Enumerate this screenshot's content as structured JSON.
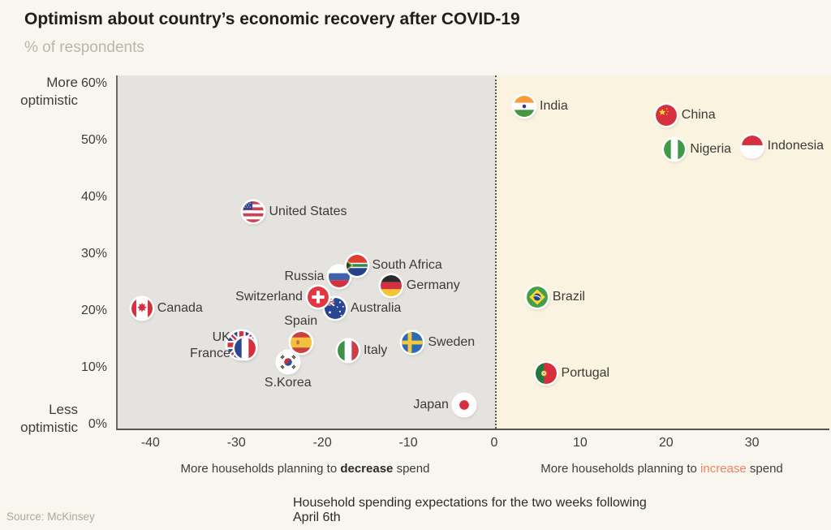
{
  "header": {
    "title": "Optimism about country’s economic recovery after COVID-19",
    "subtitle": "% of respondents"
  },
  "y_axis": {
    "top_label_line1": "More",
    "top_label_line2": "optimistic",
    "bottom_label_line1": "Less",
    "bottom_label_line2": "optimistic",
    "ticks": [
      "60%",
      "50%",
      "40%",
      "30%",
      "20%",
      "10%",
      "0%"
    ],
    "tick_values": [
      60,
      50,
      40,
      30,
      20,
      10,
      0
    ]
  },
  "x_axis": {
    "ticks": [
      -40,
      -30,
      -20,
      -10,
      0,
      10,
      20,
      30
    ],
    "decrease_label": {
      "prefix": "More households planning to ",
      "word": "decrease",
      "suffix": " spend"
    },
    "increase_label": {
      "prefix": "More households planning to ",
      "word": "increase",
      "suffix": " spend"
    }
  },
  "footer": {
    "caption": "Household spending expectations for the two weeks following April 6th",
    "source": "Source: McKinsey"
  },
  "colors": {
    "page_background": "#f8f6ef",
    "decrease_region": "#e4e3df",
    "increase_region": "#faf3e0",
    "increase_word": "#ef8363",
    "axis_line": "#55544e",
    "title_text": "#1f1e1c",
    "subtitle_text": "#b9b6ad"
  },
  "chart_data": {
    "type": "scatter",
    "title": "Optimism about country’s economic recovery after COVID-19",
    "ylabel": "% of respondents",
    "xlabel_negative": "More households planning to decrease spend",
    "xlabel_positive": "More households planning to increase spend",
    "xlim": [
      -44,
      39
    ],
    "ylim": [
      -1,
      61.5
    ],
    "x_ticks": [
      -40,
      -30,
      -20,
      -10,
      0,
      10,
      20,
      30
    ],
    "y_ticks": [
      0,
      10,
      20,
      30,
      40,
      50,
      60
    ],
    "grid": false,
    "points": [
      {
        "label": "India",
        "icon": "flag-india",
        "x": 3.5,
        "y": 56,
        "label_pos": "right"
      },
      {
        "label": "China",
        "icon": "flag-china",
        "x": 20,
        "y": 54.5,
        "label_pos": "right"
      },
      {
        "label": "Indonesia",
        "icon": "flag-indonesia",
        "x": 30,
        "y": 49,
        "label_pos": "right"
      },
      {
        "label": "Nigeria",
        "icon": "flag-nigeria",
        "x": 21,
        "y": 48.5,
        "label_pos": "right"
      },
      {
        "label": "United States",
        "icon": "flag-us",
        "x": -28,
        "y": 37.5,
        "label_pos": "right"
      },
      {
        "label": "Russia",
        "icon": "flag-russia",
        "x": -18,
        "y": 26,
        "label_pos": "left"
      },
      {
        "label": "South Africa",
        "icon": "flag-south-africa",
        "x": -16,
        "y": 28,
        "label_pos": "right"
      },
      {
        "label": "Germany",
        "icon": "flag-germany",
        "x": -12,
        "y": 24.5,
        "label_pos": "right"
      },
      {
        "label": "Australia",
        "icon": "flag-australia",
        "x": -18.5,
        "y": 20.5,
        "label_pos": "right"
      },
      {
        "label": "Switzerland",
        "icon": "flag-switzerland",
        "x": -20.5,
        "y": 22.5,
        "label_pos": "left"
      },
      {
        "label": "Brazil",
        "icon": "flag-brazil",
        "x": 5,
        "y": 22.5,
        "label_pos": "right"
      },
      {
        "label": "Canada",
        "icon": "flag-canada",
        "x": -41,
        "y": 20.5,
        "label_pos": "right"
      },
      {
        "label": "S.Korea",
        "icon": "flag-south-korea",
        "x": -24,
        "y": 11,
        "label_pos": "below"
      },
      {
        "label": "Spain",
        "icon": "flag-spain",
        "x": -22.5,
        "y": 14.5,
        "label_pos": "above"
      },
      {
        "label": "Sweden",
        "icon": "flag-sweden",
        "x": -9.5,
        "y": 14.5,
        "label_pos": "right"
      },
      {
        "label": "Italy",
        "icon": "flag-italy",
        "x": -17,
        "y": 13,
        "label_pos": "right"
      },
      {
        "label": "UK",
        "label2": "France",
        "icon": "flag-france",
        "icon2": "flag-uk",
        "x": -29,
        "y": 13.5,
        "label_pos": "left-stack"
      },
      {
        "label": "Portugal",
        "icon": "flag-portugal",
        "x": 6,
        "y": 9,
        "label_pos": "right"
      },
      {
        "label": "Japan",
        "icon": "flag-japan",
        "x": -3.5,
        "y": 3.5,
        "label_pos": "left"
      }
    ]
  }
}
